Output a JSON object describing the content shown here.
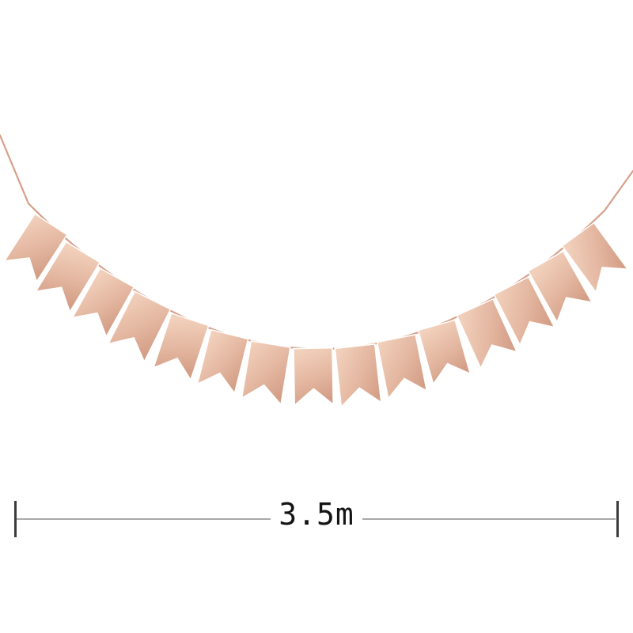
{
  "meta": {
    "kind": "product-photo",
    "background_color": "#ffffff",
    "subject": "burlap swallowtail pennant bunting banner hanging on a string"
  },
  "banner": {
    "flag_count": 15,
    "flag_shape": "swallowtail-pennant",
    "colors": {
      "flag_light": "#f2d1bc",
      "flag_base": "#e4b7a1",
      "flag_dark": "#d49e86",
      "string": "#d6a08a"
    }
  },
  "dimension": {
    "label": "3.5m",
    "line_color": "#a9a9a9",
    "tick_color": "#3c3c3c",
    "text_color": "#141414"
  }
}
